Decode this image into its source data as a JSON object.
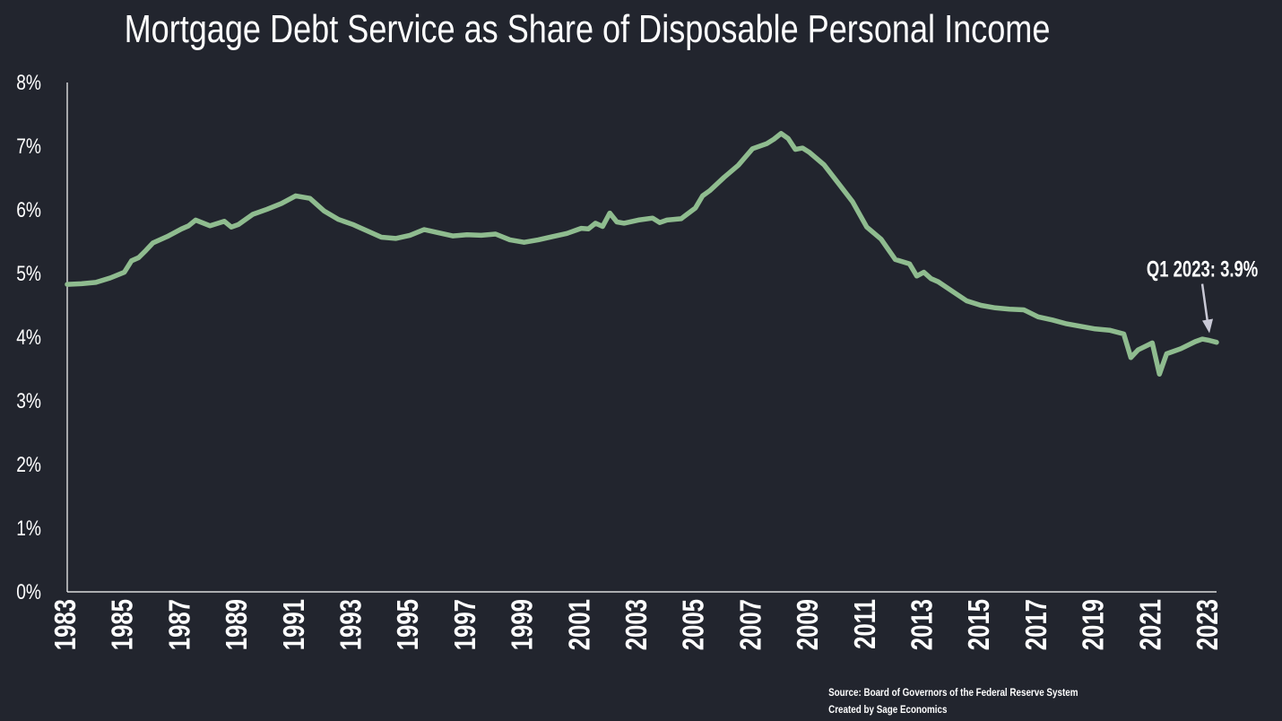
{
  "chart_data": {
    "type": "line",
    "title": "Mortgage Debt Service as Share of Disposable Personal Income",
    "xlabel": "",
    "ylabel": "",
    "ylim": [
      0,
      8
    ],
    "xlim": [
      1983.0,
      2023.25
    ],
    "y_ticks": [
      "0%",
      "1%",
      "2%",
      "3%",
      "4%",
      "5%",
      "6%",
      "7%",
      "8%"
    ],
    "x_ticks": [
      "1983",
      "1985",
      "1987",
      "1989",
      "1991",
      "1993",
      "1995",
      "1997",
      "1999",
      "2001",
      "2003",
      "2005",
      "2007",
      "2009",
      "2011",
      "2013",
      "2015",
      "2017",
      "2019",
      "2021",
      "2023"
    ],
    "grid": false,
    "line_color": "#8fbc8f",
    "series": [
      {
        "x": [
          1983.0,
          1983.5,
          1984.0,
          1984.5,
          1985.0,
          1985.25,
          1985.5,
          1985.75,
          1986.0,
          1986.5,
          1987.0,
          1987.25,
          1987.5,
          1988.0,
          1988.5,
          1988.75,
          1989.0,
          1989.5,
          1990.0,
          1990.5,
          1991.0,
          1991.5,
          1992.0,
          1992.5,
          1993.0,
          1993.25,
          1993.5,
          1994.0,
          1994.5,
          1995.0,
          1995.5,
          1996.0,
          1996.5,
          1997.0,
          1997.5,
          1998.0,
          1998.5,
          1999.0,
          1999.5,
          2000.0,
          2000.5,
          2001.0,
          2001.25,
          2001.5,
          2001.75,
          2002.0,
          2002.25,
          2002.5,
          2003.0,
          2003.5,
          2003.75,
          2004.0,
          2004.5,
          2005.0,
          2005.25,
          2005.5,
          2006.0,
          2006.5,
          2007.0,
          2007.5,
          2007.75,
          2008.0,
          2008.25,
          2008.5,
          2008.75,
          2009.0,
          2009.5,
          2010.0,
          2010.5,
          2011.0,
          2011.5,
          2012.0,
          2012.5,
          2012.75,
          2013.0,
          2013.25,
          2013.5,
          2014.0,
          2014.5,
          2015.0,
          2015.5,
          2016.0,
          2016.5,
          2017.0,
          2017.5,
          2018.0,
          2018.5,
          2019.0,
          2019.5,
          2020.0,
          2020.25,
          2020.5,
          2021.0,
          2021.25,
          2021.5,
          2022.0,
          2022.5,
          2022.75,
          2023.0,
          2023.25
        ],
        "values": [
          4.83,
          4.84,
          4.86,
          4.93,
          5.02,
          5.2,
          5.25,
          5.36,
          5.48,
          5.58,
          5.7,
          5.75,
          5.84,
          5.75,
          5.82,
          5.73,
          5.77,
          5.93,
          6.01,
          6.1,
          6.22,
          6.18,
          5.98,
          5.85,
          5.77,
          5.72,
          5.67,
          5.57,
          5.55,
          5.6,
          5.69,
          5.64,
          5.59,
          5.61,
          5.6,
          5.62,
          5.53,
          5.49,
          5.53,
          5.58,
          5.63,
          5.71,
          5.7,
          5.79,
          5.74,
          5.95,
          5.81,
          5.79,
          5.84,
          5.87,
          5.8,
          5.84,
          5.86,
          6.03,
          6.22,
          6.3,
          6.51,
          6.7,
          6.96,
          7.04,
          7.11,
          7.2,
          7.12,
          6.95,
          6.97,
          6.9,
          6.71,
          6.42,
          6.13,
          5.73,
          5.54,
          5.22,
          5.15,
          4.96,
          5.02,
          4.92,
          4.87,
          4.72,
          4.57,
          4.5,
          4.46,
          4.44,
          4.43,
          4.32,
          4.27,
          4.21,
          4.17,
          4.13,
          4.11,
          4.05,
          3.68,
          3.8,
          3.91,
          3.42,
          3.74,
          3.82,
          3.93,
          3.97,
          3.95,
          3.92
        ]
      }
    ],
    "annotation": {
      "text": "Q1 2023: 3.9%",
      "x": 2023.0,
      "y": 3.95
    },
    "source_lines": [
      "Source: Board of Governors of the Federal Reserve System",
      "Created by Sage Economics"
    ]
  }
}
